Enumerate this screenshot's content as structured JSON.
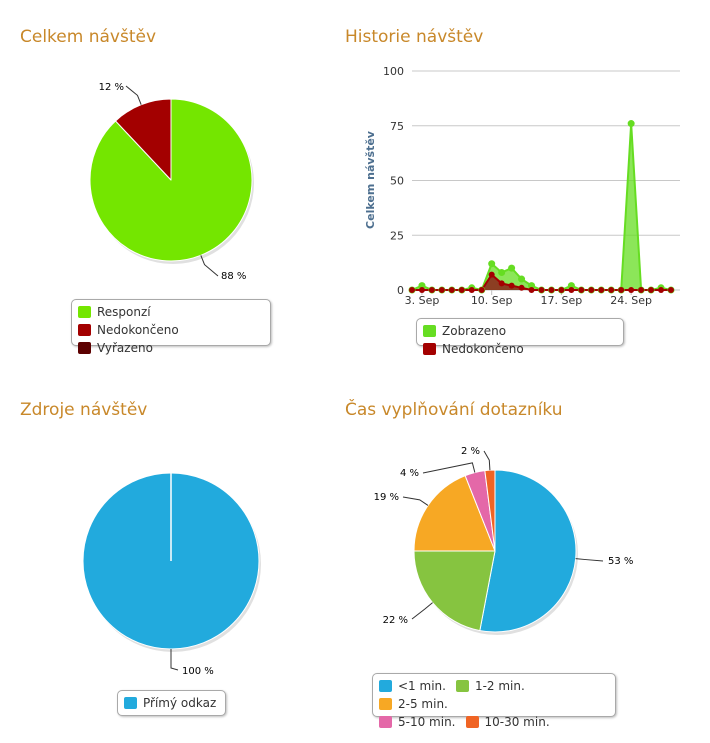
{
  "panels": {
    "total_visits": {
      "title": "Celkem návštěv",
      "chart_data": {
        "type": "pie",
        "slices": [
          {
            "name": "Responzí",
            "value": 88,
            "label": "88 %",
            "color": "#74e600"
          },
          {
            "name": "Nedokončeno",
            "value": 12,
            "label": "12 %",
            "color": "#a30000"
          },
          {
            "name": "Vyřazeno",
            "value": 0,
            "label": "",
            "color": "#5c0000"
          }
        ],
        "legend": [
          "Responzí",
          "Nedokončeno",
          "Vyřazeno"
        ]
      }
    },
    "visit_history": {
      "title": "Historie návštěv",
      "chart_data": {
        "type": "area",
        "ylabel": "Celkem návštěv",
        "ylim": [
          0,
          100
        ],
        "yticks": [
          "0",
          "25",
          "50",
          "75",
          "100"
        ],
        "xtick_labels": [
          {
            "label": "3. Sep",
            "index": 1
          },
          {
            "label": "10. Sep",
            "index": 8
          },
          {
            "label": "17. Sep",
            "index": 15
          },
          {
            "label": "24. Sep",
            "index": 22
          }
        ],
        "series": [
          {
            "name": "Zobrazeno",
            "color": "#66dd22",
            "values": [
              0,
              2,
              0,
              0,
              0,
              0,
              1,
              0,
              12,
              8,
              10,
              5,
              2,
              0,
              0,
              0,
              2,
              0,
              0,
              0,
              0,
              0,
              76,
              0,
              0,
              1,
              0
            ]
          },
          {
            "name": "Nedokončeno",
            "color": "#a30000",
            "values": [
              0,
              0,
              0,
              0,
              0,
              0,
              0,
              0,
              7,
              3,
              2,
              1,
              0,
              0,
              0,
              0,
              0,
              0,
              0,
              0,
              0,
              0,
              0,
              0,
              0,
              0,
              0
            ]
          }
        ],
        "legend": [
          "Zobrazeno",
          "Nedokončeno"
        ]
      }
    },
    "visit_sources": {
      "title": "Zdroje návštěv",
      "chart_data": {
        "type": "pie",
        "slices": [
          {
            "name": "Přímý odkaz",
            "value": 100,
            "label": "100 %",
            "color": "#22aadd"
          }
        ],
        "legend": [
          "Přímý odkaz"
        ]
      }
    },
    "completion_time": {
      "title": "Čas vyplňování dotazníku",
      "chart_data": {
        "type": "pie",
        "slices": [
          {
            "name": "<1 min.",
            "value": 53,
            "label": "53 %",
            "color": "#22aadd"
          },
          {
            "name": "1-2 min.",
            "value": 22,
            "label": "22 %",
            "color": "#86c440"
          },
          {
            "name": "2-5 min.",
            "value": 19,
            "label": "19 %",
            "color": "#f7a824"
          },
          {
            "name": "5-10 min.",
            "value": 4,
            "label": "4 %",
            "color": "#e468a8"
          },
          {
            "name": "10-30 min.",
            "value": 2,
            "label": "2 %",
            "color": "#f06424"
          }
        ],
        "legend": [
          "<1 min.",
          "1-2 min.",
          "2-5 min.",
          "5-10 min.",
          "10-30 min."
        ]
      }
    }
  }
}
